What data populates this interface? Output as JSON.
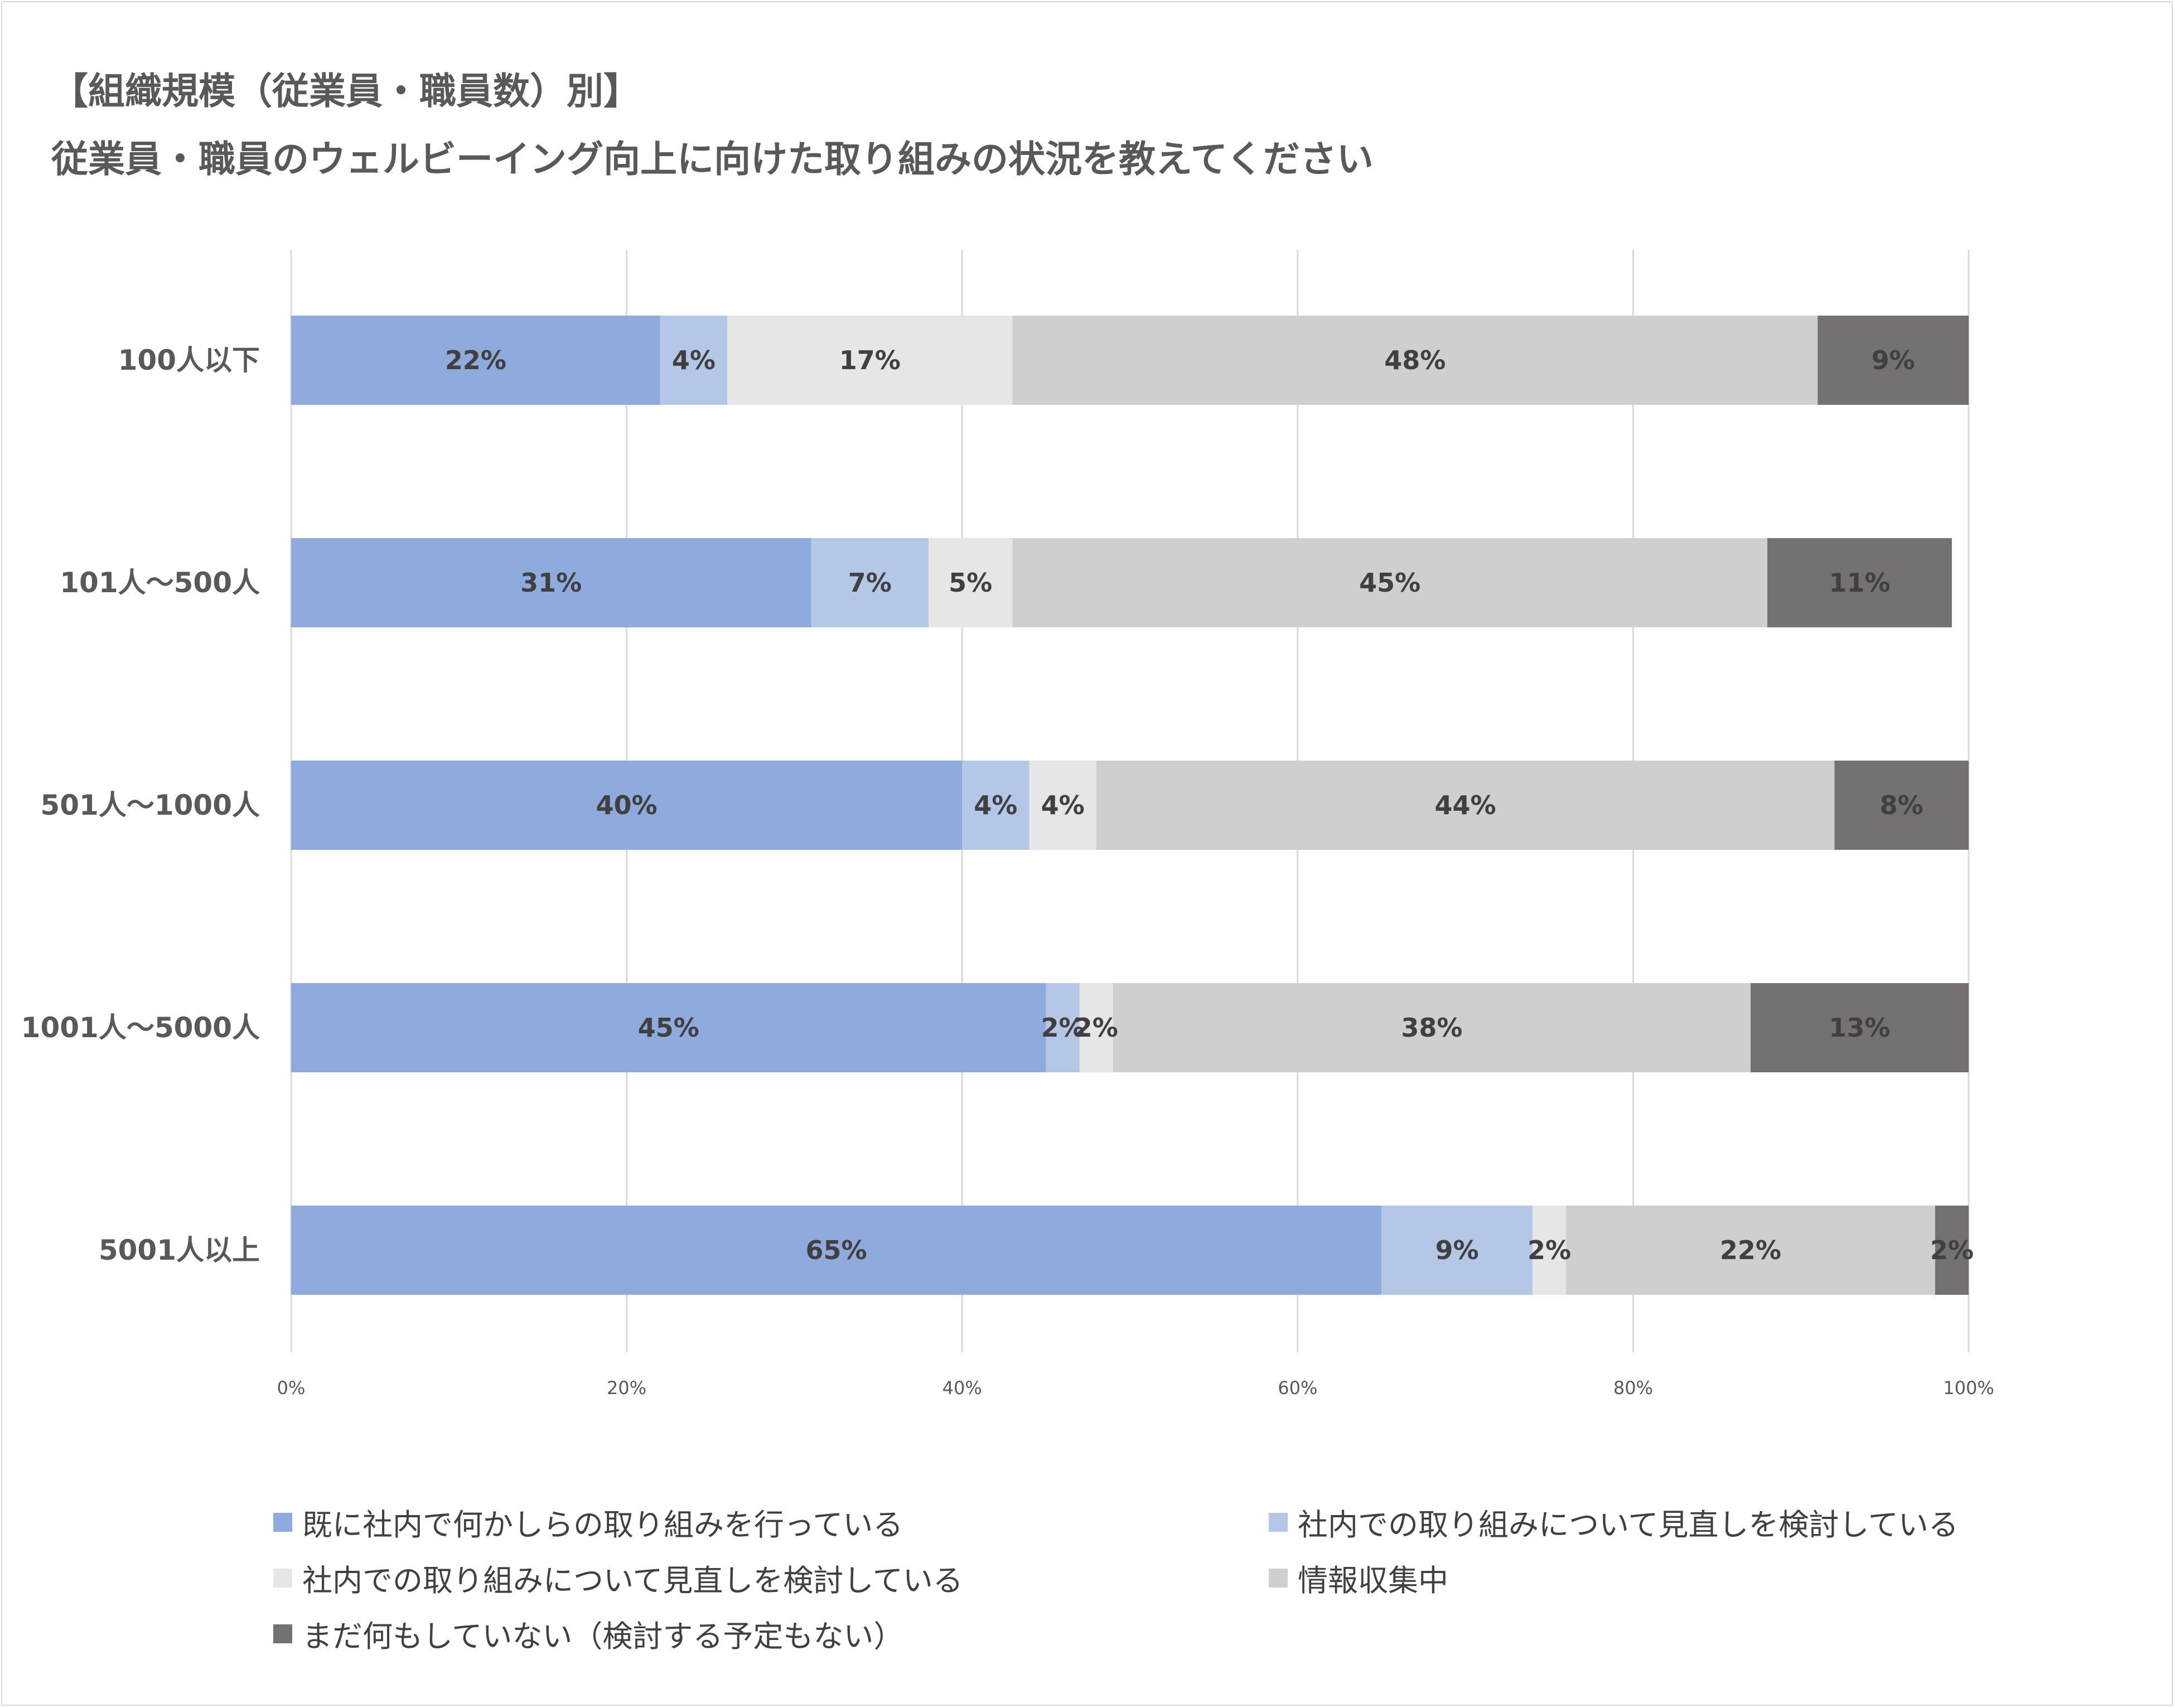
{
  "title_line1": "【組織規模（従業員・職員数）別】",
  "title_line2": "従業員・職員のウェルビーイング向上に向けた取り組みの状況を教えてください",
  "chart_data": {
    "type": "bar",
    "orientation": "horizontal",
    "stacked": true,
    "title": "【組織規模（従業員・職員数）別】従業員・職員のウェルビーイング向上に向けた取り組みの状況を教えてください",
    "categories": [
      "100人以下",
      "101人～500人",
      "501人～1000人",
      "1001人～5000人",
      "5001人以上"
    ],
    "series": [
      {
        "name": "既に社内で何かしらの取り組みを行っている",
        "color": "#8faadc",
        "values": [
          22,
          31,
          40,
          45,
          65
        ],
        "labels": [
          "22%",
          "31%",
          "40%",
          "45%",
          "65%"
        ]
      },
      {
        "name": "社内での取り組みについて見直しを検討している",
        "color": "#b4c7e7",
        "values": [
          4,
          7,
          4,
          2,
          9
        ],
        "labels": [
          "4%",
          "7%",
          "4%",
          "2%",
          "9%"
        ]
      },
      {
        "name": "社内での取り組みについて見直しを検討している",
        "color": "#e7e6e6",
        "values": [
          17,
          5,
          4,
          2,
          2
        ],
        "labels": [
          "17%",
          "5%",
          "4%",
          "2%",
          "2%"
        ]
      },
      {
        "name": "情報収集中",
        "color": "#d0cece",
        "values": [
          48,
          45,
          44,
          38,
          22
        ],
        "labels": [
          "48%",
          "45%",
          "44%",
          "38%",
          "22%"
        ]
      },
      {
        "name": "まだ何もしていない（検討する予定もない）",
        "color": "#767171",
        "values": [
          9,
          11,
          8,
          13,
          2
        ],
        "labels": [
          "9%",
          "11%",
          "8%",
          "13%",
          "2%"
        ]
      }
    ],
    "xlim": [
      0,
      100
    ],
    "xticks": [
      "0%",
      "20%",
      "40%",
      "60%",
      "80%",
      "100%"
    ],
    "grid": true,
    "legend_position": "bottom"
  }
}
